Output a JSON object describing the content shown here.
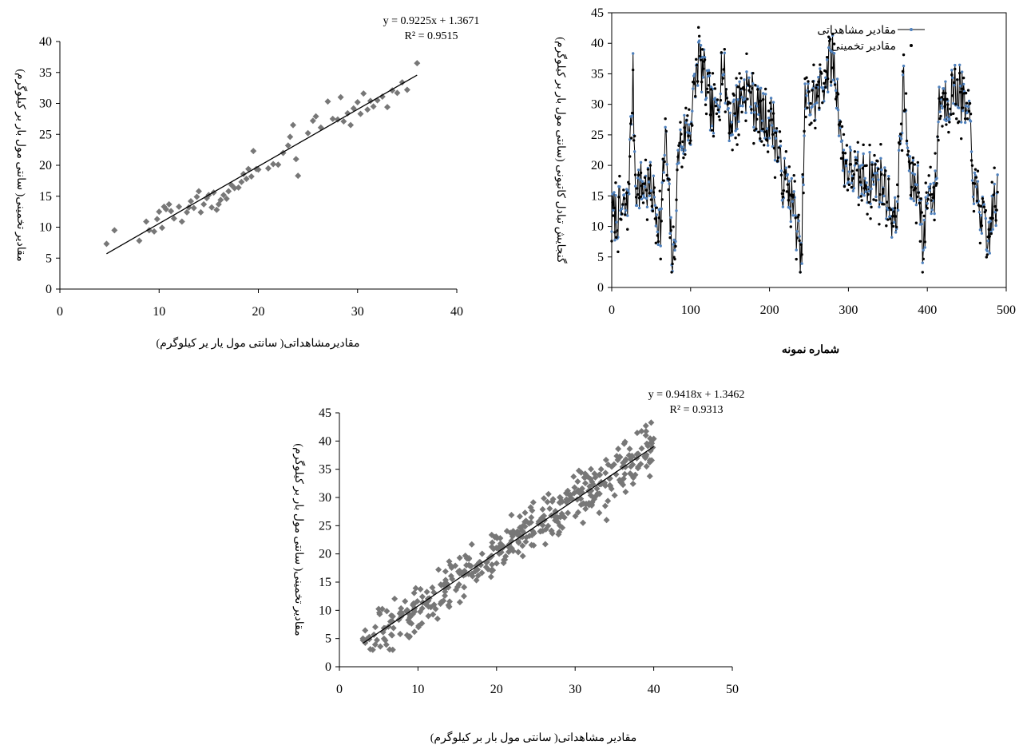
{
  "chart_data": [
    {
      "type": "scatter",
      "id": "train",
      "xlabel": "مقادیرمشاهداتی( سانتی مول یار یر کیلوگرم)",
      "ylabel": "مقادیر تخمینی( سانتی مول بار بر کیلوگرم)",
      "xlim": [
        0,
        40
      ],
      "ylim": [
        0,
        40
      ],
      "xticks": [
        "0",
        "10",
        "20",
        "30",
        "40"
      ],
      "yticks": [
        "0",
        "5",
        "10",
        "15",
        "20",
        "25",
        "30",
        "35",
        "40"
      ],
      "grid": false,
      "marker_color": "#777777",
      "trendline": {
        "slope": 0.9225,
        "intercept": 1.3671,
        "x_range": [
          4.7,
          36
        ]
      },
      "equation": "y = 0.9225x + 1.3671",
      "r2": "R² = 0.9515",
      "points": [
        [
          4.7,
          7.3
        ],
        [
          5.5,
          9.5
        ],
        [
          8,
          7.8
        ],
        [
          8.7,
          10.9
        ],
        [
          9,
          9.5
        ],
        [
          9.5,
          9.3
        ],
        [
          9.8,
          11.3
        ],
        [
          10,
          12.5
        ],
        [
          10.3,
          9.9
        ],
        [
          10.5,
          13.3
        ],
        [
          10.7,
          12.9
        ],
        [
          11,
          13.7
        ],
        [
          11.2,
          12.6
        ],
        [
          11.5,
          11.4
        ],
        [
          12,
          13.3
        ],
        [
          12.3,
          10.9
        ],
        [
          12.8,
          12.4
        ],
        [
          13,
          13.2
        ],
        [
          13.2,
          14.2
        ],
        [
          13.5,
          13.1
        ],
        [
          13.8,
          14.9
        ],
        [
          14,
          15.8
        ],
        [
          14.2,
          12.4
        ],
        [
          14.5,
          13.7
        ],
        [
          14.8,
          14.7
        ],
        [
          15,
          15.2
        ],
        [
          15.3,
          13.2
        ],
        [
          15.5,
          15.6
        ],
        [
          15.8,
          12.8
        ],
        [
          16,
          13.7
        ],
        [
          16.2,
          14.4
        ],
        [
          16.5,
          15.2
        ],
        [
          16.8,
          14.6
        ],
        [
          17,
          15.8
        ],
        [
          17.3,
          16.8
        ],
        [
          17.6,
          16.3
        ],
        [
          18,
          16.4
        ],
        [
          18.3,
          17.3
        ],
        [
          18.5,
          18.6
        ],
        [
          18.8,
          17.8
        ],
        [
          19,
          19.4
        ],
        [
          19.3,
          18.2
        ],
        [
          19.5,
          22.3
        ],
        [
          19.8,
          19.4
        ],
        [
          20,
          19.3
        ],
        [
          21,
          19.5
        ],
        [
          21.5,
          20.2
        ],
        [
          22,
          20.1
        ],
        [
          22.5,
          22.0
        ],
        [
          23,
          23.2
        ],
        [
          23.2,
          24.6
        ],
        [
          23.5,
          26.5
        ],
        [
          23.8,
          21.0
        ],
        [
          24,
          18.3
        ],
        [
          25,
          25.2
        ],
        [
          25.5,
          27.2
        ],
        [
          25.8,
          27.9
        ],
        [
          26.3,
          26.1
        ],
        [
          27,
          30.3
        ],
        [
          27.5,
          27.5
        ],
        [
          28,
          27.4
        ],
        [
          28.3,
          31.0
        ],
        [
          28.6,
          27.1
        ],
        [
          29,
          28.4
        ],
        [
          29.3,
          26.5
        ],
        [
          29.6,
          29.2
        ],
        [
          30,
          30.2
        ],
        [
          30.3,
          28.3
        ],
        [
          30.6,
          31.6
        ],
        [
          31,
          29.0
        ],
        [
          31.3,
          30.4
        ],
        [
          31.6,
          29.5
        ],
        [
          32,
          30.5
        ],
        [
          32.5,
          31.1
        ],
        [
          33,
          29.4
        ],
        [
          33.5,
          32.1
        ],
        [
          34,
          31.7
        ],
        [
          34.5,
          33.4
        ],
        [
          35,
          32.2
        ],
        [
          36,
          36.5
        ]
      ]
    },
    {
      "type": "line",
      "id": "series",
      "xlabel": "شماره نمونه",
      "ylabel": "گنجایش تبادل کاتیونی (سانتی مول بار بر کیلوگرم)",
      "xlim": [
        0,
        500
      ],
      "ylim": [
        0,
        45
      ],
      "xticks": [
        "0",
        "100",
        "200",
        "300",
        "400",
        "500"
      ],
      "yticks": [
        "0",
        "5",
        "10",
        "15",
        "20",
        "25",
        "30",
        "35",
        "40",
        "45"
      ],
      "grid": false,
      "legend_position": "top-right",
      "series": [
        {
          "name": "مقادیر مشاهداتی",
          "color": "#000000",
          "marker_color": "#4f81bd",
          "anchors": [
            [
              0,
              11.5
            ],
            [
              20,
              13
            ],
            [
              27,
              34
            ],
            [
              30,
              17
            ],
            [
              50,
              16
            ],
            [
              62,
              10
            ],
            [
              68,
              25
            ],
            [
              75,
              8
            ],
            [
              78,
              3
            ],
            [
              85,
              23
            ],
            [
              100,
              27
            ],
            [
              110,
              38
            ],
            [
              120,
              33
            ],
            [
              130,
              27
            ],
            [
              140,
              37
            ],
            [
              150,
              27
            ],
            [
              170,
              33
            ],
            [
              190,
              28
            ],
            [
              205,
              27
            ],
            [
              215,
              18
            ],
            [
              225,
              16
            ],
            [
              235,
              10
            ],
            [
              240,
              3
            ],
            [
              245,
              30
            ],
            [
              260,
              31
            ],
            [
              280,
              38
            ],
            [
              290,
              27
            ],
            [
              292,
              21
            ],
            [
              310,
              18
            ],
            [
              330,
              18
            ],
            [
              345,
              17
            ],
            [
              360,
              10
            ],
            [
              370,
              33
            ],
            [
              378,
              17
            ],
            [
              390,
              17
            ],
            [
              395,
              5
            ],
            [
              400,
              16
            ],
            [
              410,
              15
            ],
            [
              415,
              31
            ],
            [
              425,
              31
            ],
            [
              430,
              32
            ],
            [
              440,
              33
            ],
            [
              455,
              25
            ],
            [
              460,
              15
            ],
            [
              470,
              12
            ],
            [
              475,
              6
            ],
            [
              485,
              14
            ]
          ]
        },
        {
          "name": "مقادیر تخمینی",
          "color": "#000000",
          "marker_color": "#000000"
        }
      ],
      "n_points": 490
    },
    {
      "type": "scatter",
      "id": "test",
      "xlabel": "مقادیر مشاهداتی( سانتی مول بار بر کیلوگرم)",
      "ylabel": "مقادیر تخمینی( سانتی مول بار بر کیلوگرم)",
      "xlim": [
        0,
        50
      ],
      "ylim": [
        0,
        45
      ],
      "xticks": [
        "0",
        "10",
        "20",
        "30",
        "40",
        "50"
      ],
      "yticks": [
        "0",
        "5",
        "10",
        "15",
        "20",
        "25",
        "30",
        "35",
        "40",
        "45"
      ],
      "grid": false,
      "marker_color": "#777777",
      "trendline": {
        "slope": 0.9418,
        "intercept": 1.3462,
        "x_range": [
          3,
          40
        ]
      },
      "equation": "y = 0.9418x + 1.3462",
      "r2": "R² = 0.9313",
      "n_points": 420,
      "x_range_points": [
        3,
        40
      ],
      "outliers": [
        [
          3,
          4.7
        ],
        [
          3,
          5.0
        ],
        [
          39,
          42.7
        ],
        [
          39,
          41.0
        ],
        [
          40,
          40.4
        ],
        [
          34,
          26.0
        ],
        [
          31,
          25.5
        ],
        [
          38,
          35.2
        ]
      ]
    }
  ]
}
